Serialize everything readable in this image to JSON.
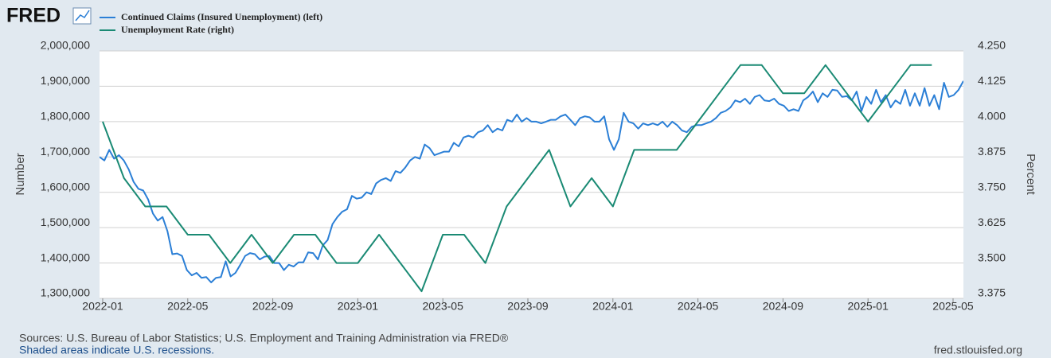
{
  "logo": "FRED",
  "chart_data": {
    "type": "line",
    "series": [
      {
        "name": "Continued Claims (Insured Unemployment) (left)",
        "color": "#2b7fd6",
        "values": [
          1700000,
          1690000,
          1720000,
          1695000,
          1705000,
          1690000,
          1665000,
          1630000,
          1610000,
          1605000,
          1580000,
          1540000,
          1520000,
          1530000,
          1490000,
          1425000,
          1427000,
          1420000,
          1380000,
          1365000,
          1372000,
          1358000,
          1360000,
          1345000,
          1358000,
          1360000,
          1405000,
          1362000,
          1372000,
          1395000,
          1420000,
          1428000,
          1425000,
          1410000,
          1418000,
          1420000,
          1400000,
          1400000,
          1380000,
          1395000,
          1390000,
          1402000,
          1402000,
          1430000,
          1428000,
          1410000,
          1450000,
          1465000,
          1510000,
          1530000,
          1545000,
          1552000,
          1590000,
          1582000,
          1585000,
          1600000,
          1595000,
          1625000,
          1635000,
          1640000,
          1632000,
          1660000,
          1655000,
          1670000,
          1690000,
          1700000,
          1695000,
          1735000,
          1725000,
          1705000,
          1710000,
          1715000,
          1715000,
          1740000,
          1730000,
          1755000,
          1760000,
          1755000,
          1770000,
          1775000,
          1790000,
          1770000,
          1780000,
          1775000,
          1805000,
          1800000,
          1820000,
          1800000,
          1810000,
          1800000,
          1800000,
          1795000,
          1800000,
          1805000,
          1805000,
          1815000,
          1820000,
          1805000,
          1790000,
          1810000,
          1815000,
          1812000,
          1800000,
          1800000,
          1815000,
          1750000,
          1720000,
          1750000,
          1825000,
          1800000,
          1795000,
          1780000,
          1795000,
          1790000,
          1795000,
          1790000,
          1800000,
          1785000,
          1800000,
          1790000,
          1775000,
          1770000,
          1785000,
          1790000,
          1790000,
          1795000,
          1800000,
          1810000,
          1825000,
          1830000,
          1840000,
          1860000,
          1855000,
          1865000,
          1850000,
          1870000,
          1875000,
          1860000,
          1858000,
          1865000,
          1850000,
          1845000,
          1830000,
          1835000,
          1830000,
          1860000,
          1870000,
          1885000,
          1855000,
          1880000,
          1870000,
          1890000,
          1888000,
          1870000,
          1872000,
          1860000,
          1885000,
          1830000,
          1870000,
          1850000,
          1890000,
          1855000,
          1875000,
          1840000,
          1860000,
          1850000,
          1890000,
          1845000,
          1880000,
          1845000,
          1895000,
          1845000,
          1875000,
          1835000,
          1910000,
          1870000,
          1875000,
          1890000,
          1915000
        ]
      },
      {
        "name": "Unemployment Rate (right)",
        "color": "#1a8a74",
        "axis": "y2",
        "x": [
          "2022-01",
          "2022-02",
          "2022-03",
          "2022-04",
          "2022-05",
          "2022-06",
          "2022-07",
          "2022-08",
          "2022-09",
          "2022-10",
          "2022-11",
          "2022-12",
          "2023-01",
          "2023-02",
          "2023-03",
          "2023-04",
          "2023-05",
          "2023-06",
          "2023-07",
          "2023-08",
          "2023-09",
          "2023-10",
          "2023-11",
          "2023-12",
          "2024-01",
          "2024-02",
          "2024-03",
          "2024-04",
          "2024-05",
          "2024-06",
          "2024-07",
          "2024-08",
          "2024-09",
          "2024-10",
          "2024-11",
          "2024-12",
          "2025-01",
          "2025-02",
          "2025-03",
          "2025-04"
        ],
        "values": [
          4.0,
          3.8,
          3.7,
          3.7,
          3.6,
          3.6,
          3.5,
          3.6,
          3.5,
          3.6,
          3.6,
          3.5,
          3.5,
          3.6,
          3.5,
          3.4,
          3.6,
          3.6,
          3.5,
          3.7,
          3.8,
          3.9,
          3.7,
          3.8,
          3.7,
          3.9,
          3.9,
          3.9,
          4.0,
          4.1,
          4.2,
          4.2,
          4.1,
          4.1,
          4.2,
          4.1,
          4.0,
          4.1,
          4.2,
          4.2
        ]
      }
    ],
    "xlim": [
      "2022-01",
      "2025-05"
    ],
    "xticks": [
      "2022-01",
      "2022-05",
      "2022-09",
      "2023-01",
      "2023-05",
      "2023-09",
      "2024-01",
      "2024-05",
      "2024-09",
      "2025-01",
      "2025-05"
    ],
    "ylim": [
      1300000,
      2000000
    ],
    "yticks": [
      {
        "value": 1300000,
        "label": "1,300,000"
      },
      {
        "value": 1400000,
        "label": "1,400,000"
      },
      {
        "value": 1500000,
        "label": "1,500,000"
      },
      {
        "value": 1600000,
        "label": "1,600,000"
      },
      {
        "value": 1700000,
        "label": "1,700,000"
      },
      {
        "value": 1800000,
        "label": "1,800,000"
      },
      {
        "value": 1900000,
        "label": "1,900,000"
      },
      {
        "value": 2000000,
        "label": "2,000,000"
      }
    ],
    "y2lim": [
      3.375,
      4.25
    ],
    "y2ticks": [
      {
        "value": 3.375,
        "label": "3.375"
      },
      {
        "value": 3.5,
        "label": "3.500"
      },
      {
        "value": 3.625,
        "label": "3.625"
      },
      {
        "value": 3.75,
        "label": "3.750"
      },
      {
        "value": 3.875,
        "label": "3.875"
      },
      {
        "value": 4.0,
        "label": "4.000"
      },
      {
        "value": 4.125,
        "label": "4.125"
      },
      {
        "value": 4.25,
        "label": "4.250"
      }
    ],
    "ylabel": "Number",
    "y2label": "Percent",
    "grid": true
  },
  "footer": {
    "sources": "Sources: U.S. Bureau of Labor Statistics; U.S. Employment and Training Administration via FRED®",
    "note": "Shaded areas indicate U.S. recessions.",
    "site": "fred.stlouisfed.org"
  }
}
